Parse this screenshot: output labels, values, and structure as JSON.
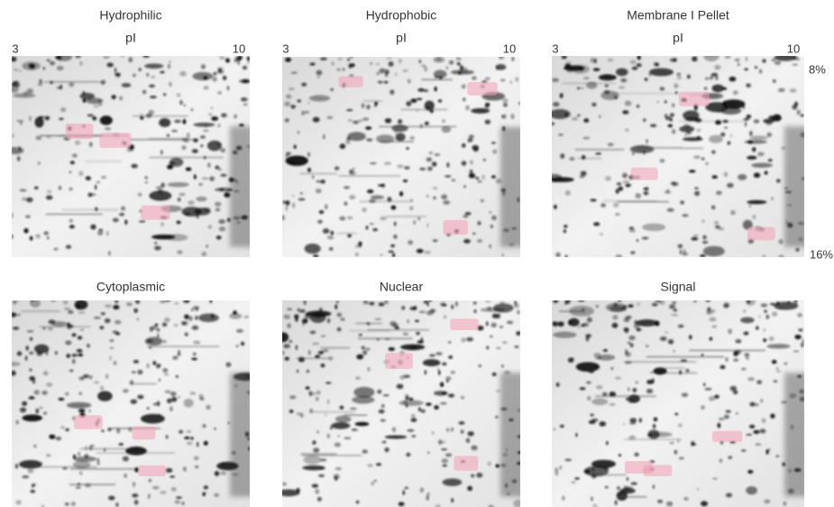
{
  "panels": [
    {
      "title": "Hydrophilic",
      "axis_label": "pI",
      "axis_start": "3",
      "axis_end": "10"
    },
    {
      "title": "Hydrophobic",
      "axis_label": "pI",
      "axis_start": "3",
      "axis_end": "10"
    },
    {
      "title": "Membrane I Pellet",
      "axis_label": "pI",
      "axis_start": "3",
      "axis_end": "10"
    },
    {
      "title": "Cytoplasmic"
    },
    {
      "title": "Nuclear"
    },
    {
      "title": "Signal"
    }
  ],
  "gradient": {
    "top": "8%",
    "bottom": "16%"
  }
}
